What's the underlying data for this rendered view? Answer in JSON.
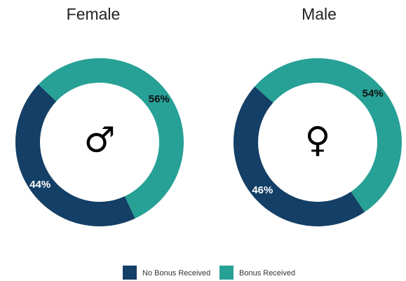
{
  "chart_data": [
    {
      "type": "donut",
      "title": "Female",
      "symbol": "♂",
      "values": [
        44,
        56
      ],
      "value_labels": [
        "44%",
        "56%"
      ]
    },
    {
      "type": "donut",
      "title": "Male",
      "symbol": "♀",
      "values": [
        46,
        54
      ],
      "value_labels": [
        "46%",
        "54%"
      ]
    }
  ],
  "legend": {
    "categories": [
      "No Bonus Received",
      "Bonus Received"
    ],
    "colors": [
      "#143f66",
      "#27a096"
    ]
  }
}
